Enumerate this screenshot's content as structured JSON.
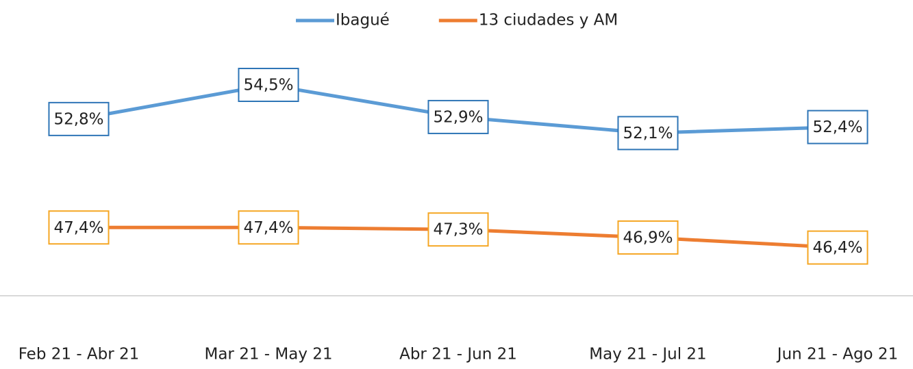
{
  "chart_data": {
    "type": "line",
    "categories": [
      "Feb 21 - Abr 21",
      "Mar 21 - May 21",
      "Abr 21 - Jun 21",
      "May 21 - Jul 21",
      "Jun 21 - Ago 21"
    ],
    "series": [
      {
        "name": "Ibagué",
        "color": "#5b9bd5",
        "label_border": "#2e75b6",
        "values": [
          52.8,
          54.5,
          52.9,
          52.1,
          52.4
        ],
        "value_labels": [
          "52,8%",
          "54,5%",
          "52,9%",
          "52,1%",
          "52,4%"
        ]
      },
      {
        "name": "13 ciudades y AM",
        "color": "#ed7d31",
        "label_border": "#f5a623",
        "values": [
          47.4,
          47.4,
          47.3,
          46.9,
          46.4
        ],
        "value_labels": [
          "47,4%",
          "47,4%",
          "47,3%",
          "46,9%",
          "46,4%"
        ]
      }
    ],
    "ylim": [
      44,
      56
    ],
    "legend": "top",
    "grid": false
  }
}
